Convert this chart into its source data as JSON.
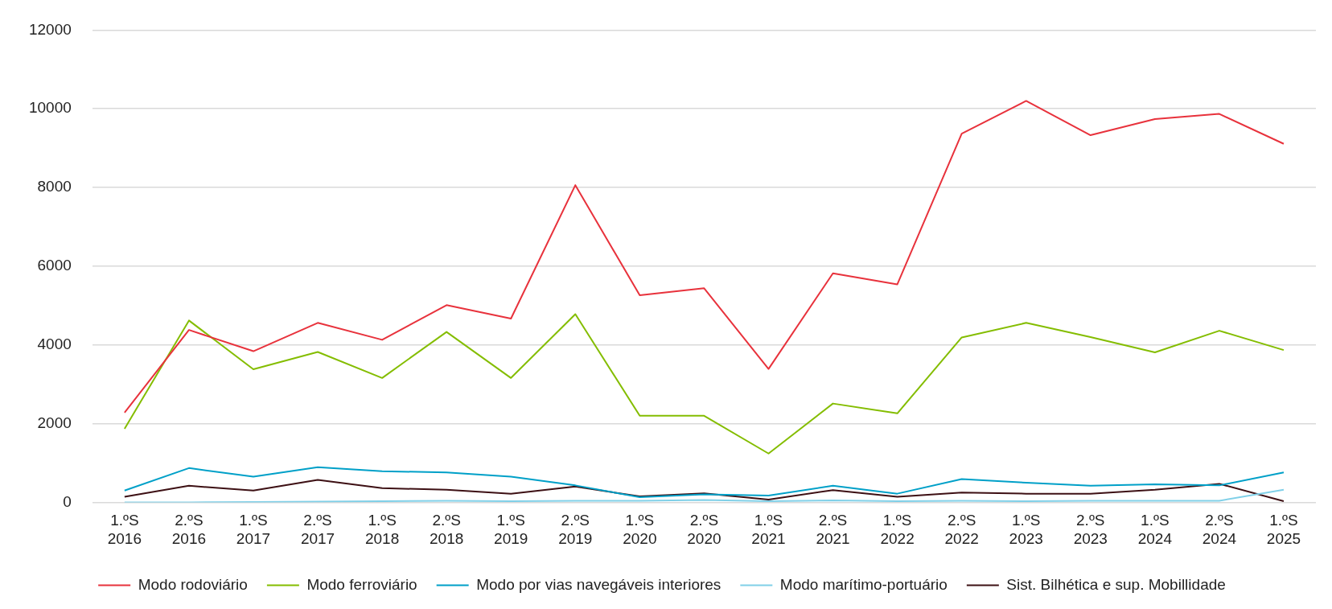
{
  "chart_data": {
    "type": "line",
    "categories": [
      "1.ºS 2016",
      "2.ºS 2016",
      "1.ºS 2017",
      "2.ºS 2017",
      "1.ºS 2018",
      "2.ºS 2018",
      "1.ºS 2019",
      "2.ºS 2019",
      "1.ºS 2020",
      "2.ºS 2020",
      "1.ºS 2021",
      "2.ºS 2021",
      "1.ºS 2022",
      "2.ºS 2022",
      "1.ºS 2023",
      "2.ºS 2023",
      "1.ºS 2024",
      "2.ºS 2024",
      "1.ºS 2025"
    ],
    "series": [
      {
        "name": "Modo rodoviário",
        "color": "#e8323c",
        "values": [
          2280,
          4380,
          3840,
          4560,
          4130,
          5010,
          4670,
          8060,
          5260,
          5440,
          3390,
          5820,
          5540,
          9370,
          10200,
          9330,
          9740,
          9870,
          9110
        ]
      },
      {
        "name": "Modo ferroviário",
        "color": "#84bd00",
        "values": [
          1870,
          4620,
          3380,
          3820,
          3160,
          4330,
          3160,
          4780,
          2200,
          2200,
          1240,
          2510,
          2260,
          4190,
          4560,
          4200,
          3810,
          4360,
          3870
        ]
      },
      {
        "name": "Modo por vias navegáveis interiores",
        "color": "#00a0c8",
        "values": [
          300,
          870,
          650,
          890,
          790,
          760,
          650,
          430,
          130,
          200,
          170,
          420,
          220,
          590,
          500,
          420,
          460,
          430,
          760
        ]
      },
      {
        "name": "Modo marítimo-portuário",
        "color": "#80d0e8",
        "values": [
          0,
          0,
          10,
          20,
          30,
          40,
          30,
          40,
          40,
          60,
          30,
          50,
          30,
          40,
          30,
          40,
          40,
          40,
          320
        ]
      },
      {
        "name": "Sist. Bilhética e sup. Mobillidade",
        "color": "#3d1014",
        "values": [
          140,
          420,
          300,
          570,
          360,
          320,
          220,
          400,
          150,
          230,
          70,
          310,
          140,
          250,
          220,
          220,
          320,
          470,
          30
        ]
      }
    ],
    "ylim": [
      0,
      12000
    ],
    "yticks": [
      0,
      2000,
      4000,
      6000,
      8000,
      10000,
      12000
    ],
    "grid": "y",
    "legend": "bottom",
    "marker": "none",
    "line_style": "solid"
  }
}
